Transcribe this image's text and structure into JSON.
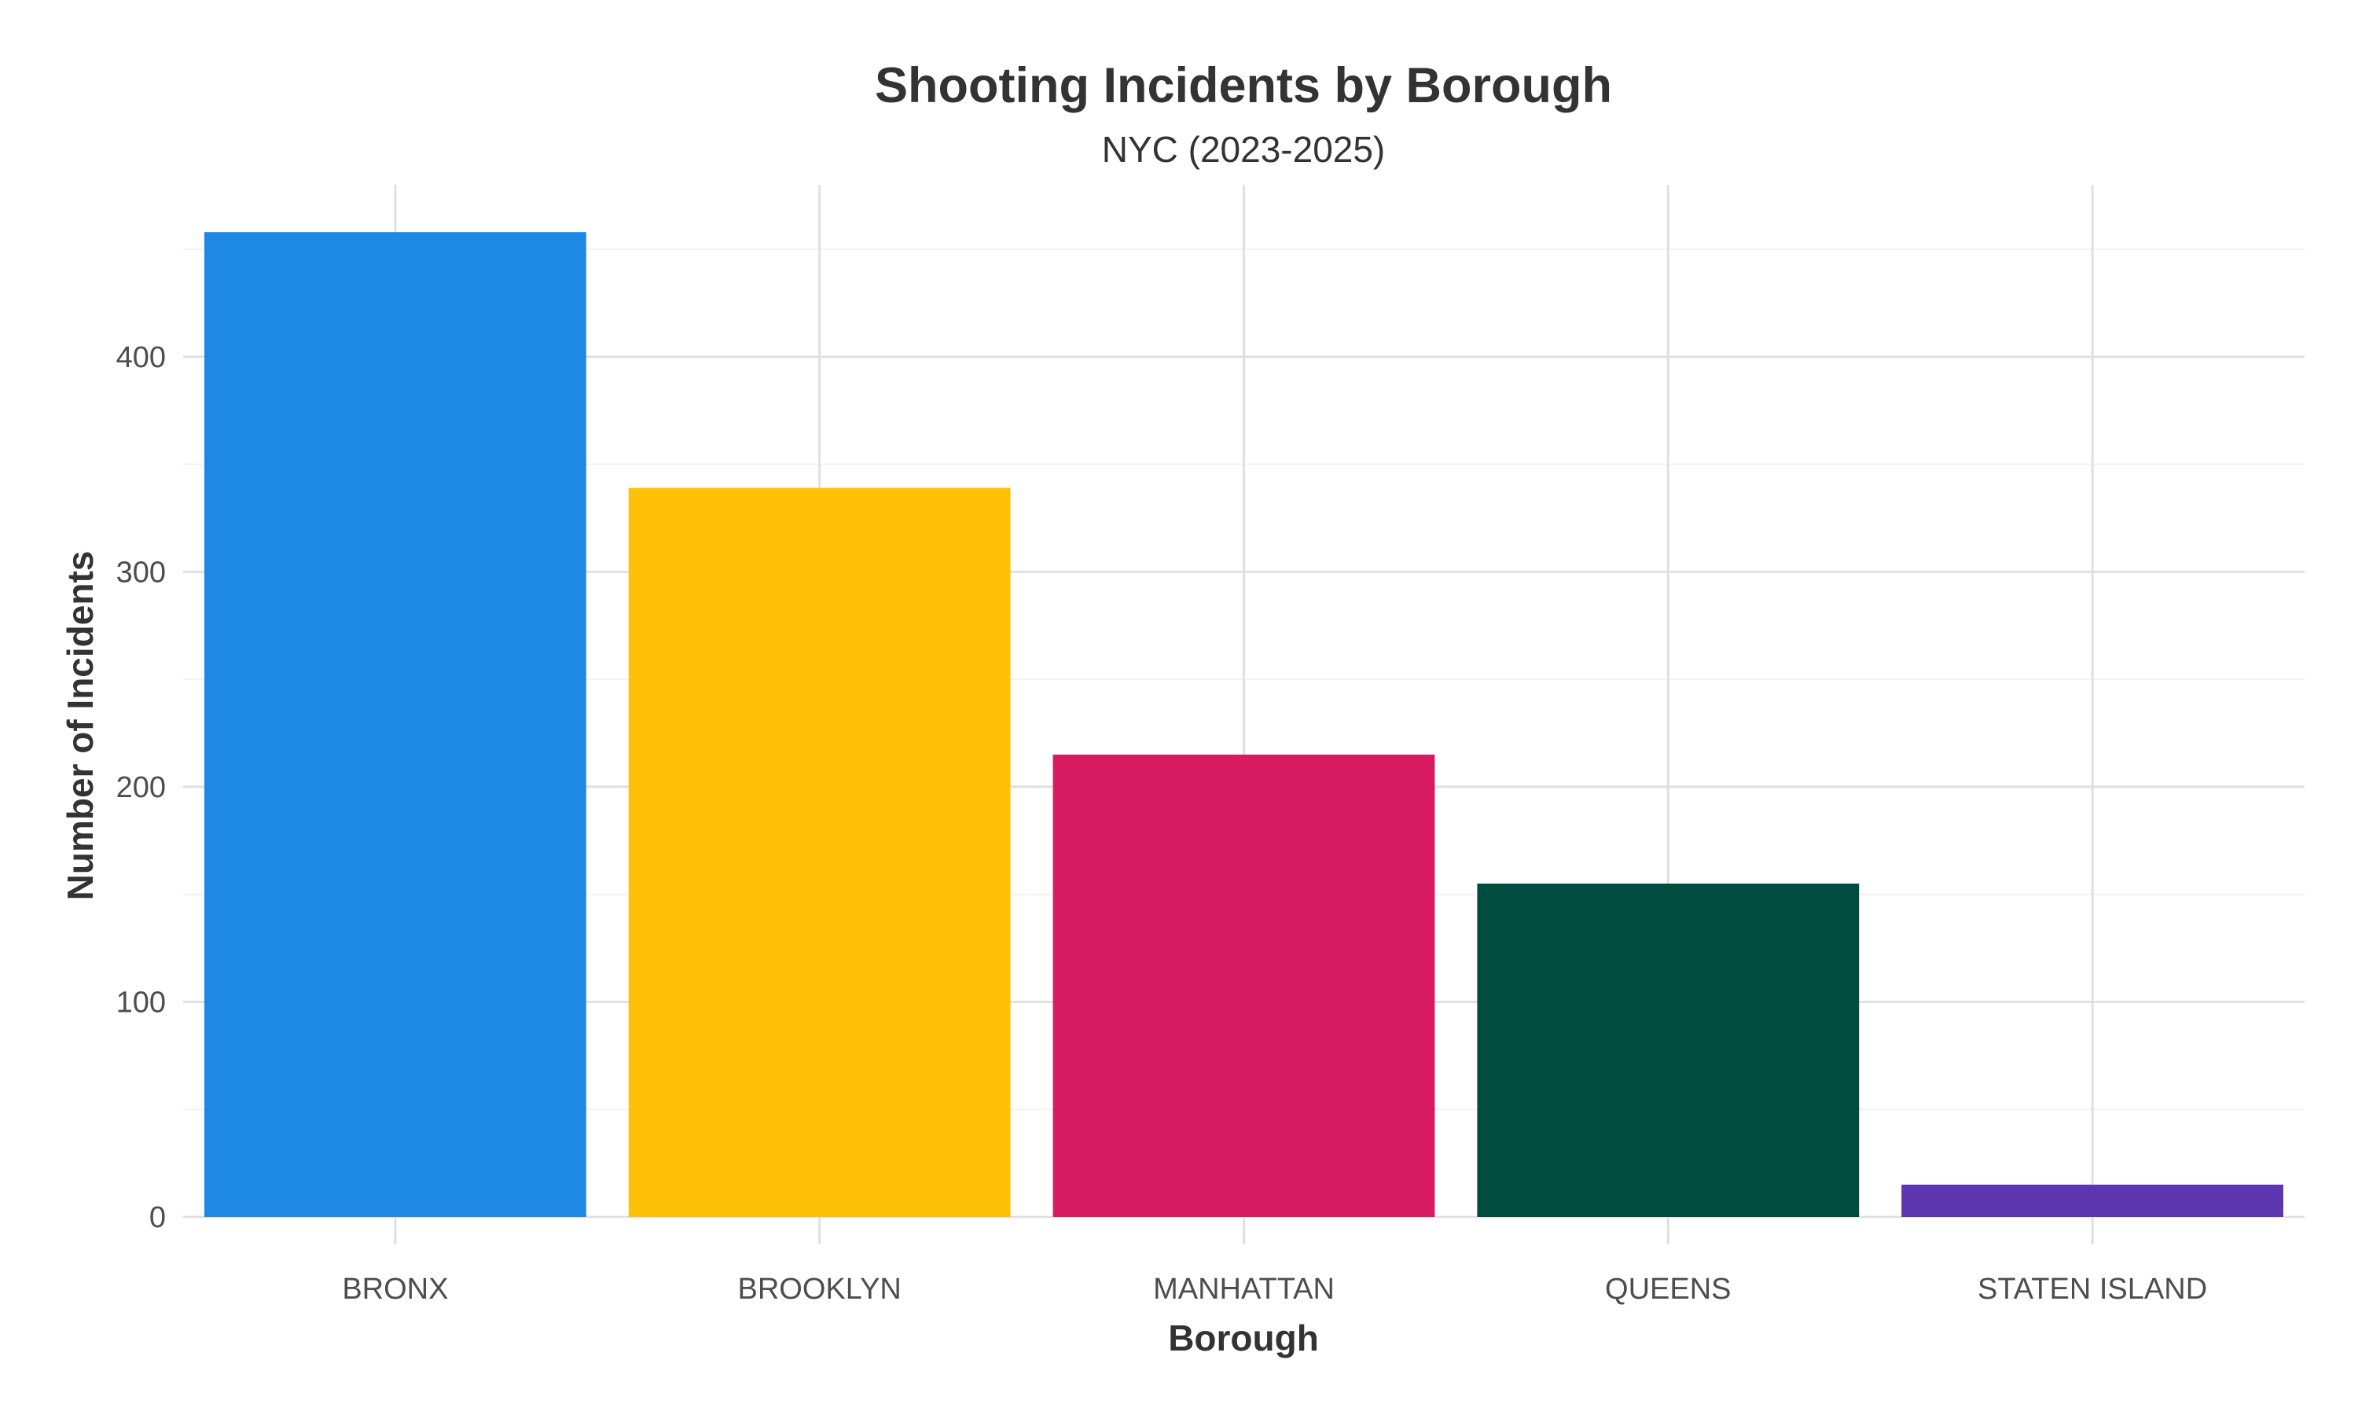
{
  "chart_data": {
    "type": "bar",
    "title": "Shooting Incidents by Borough",
    "subtitle": "NYC (2023-2025)",
    "xlabel": "Borough",
    "ylabel": "Number of Incidents",
    "categories": [
      "BRONX",
      "BROOKLYN",
      "MANHATTAN",
      "QUEENS",
      "STATEN ISLAND"
    ],
    "values": [
      458,
      339,
      215,
      155,
      15
    ],
    "colors": [
      "#1E88E5",
      "#FFC107",
      "#D81B60",
      "#004D40",
      "#5E35B1"
    ],
    "ylim": [
      0,
      480
    ],
    "yticks": [
      0,
      100,
      200,
      300,
      400
    ],
    "grid": true,
    "legend": "none"
  }
}
